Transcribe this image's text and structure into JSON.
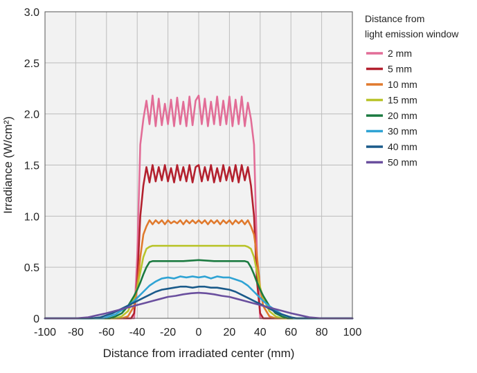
{
  "chart_data": {
    "type": "line",
    "title": "",
    "xlabel": "Distance from irradiated center (mm)",
    "ylabel": "Irradiance (W/cm²)",
    "xlim": [
      -100,
      100
    ],
    "ylim": [
      0,
      3.0
    ],
    "xticks": [
      -100,
      -80,
      -60,
      -40,
      -20,
      0,
      20,
      40,
      60,
      80,
      100
    ],
    "xtick_labels": [
      "-100",
      "-80",
      "-60",
      "-40",
      "-20",
      "0",
      "20",
      "40",
      "60",
      "80",
      "100"
    ],
    "yticks": [
      0,
      0.5,
      1.0,
      1.5,
      2.0,
      2.5,
      3.0
    ],
    "ytick_labels": [
      "0",
      "0.5",
      "1.0",
      "1.5",
      "2.0",
      "2.5",
      "3.0"
    ],
    "grid": true,
    "legend": {
      "title_lines": [
        "Distance from",
        "light emission window"
      ],
      "placement": "right"
    },
    "series": [
      {
        "name": "2 mm",
        "color": "#e26d97",
        "x": [
          -100,
          -42,
          -40,
          -38,
          -36,
          -34,
          -32,
          -30,
          -28,
          -26,
          -24,
          -22,
          -20,
          -18,
          -16,
          -14,
          -12,
          -10,
          -8,
          -6,
          -4,
          -2,
          0,
          2,
          4,
          6,
          8,
          10,
          12,
          14,
          16,
          18,
          20,
          22,
          24,
          26,
          28,
          30,
          32,
          34,
          36,
          38,
          40,
          42,
          100
        ],
        "y": [
          0,
          0,
          0.6,
          1.7,
          1.95,
          2.13,
          1.9,
          2.18,
          1.88,
          2.15,
          1.89,
          2.1,
          1.9,
          2.14,
          1.88,
          2.16,
          1.9,
          2.12,
          1.88,
          2.17,
          1.89,
          2.13,
          2.18,
          1.9,
          2.15,
          1.88,
          2.12,
          1.9,
          2.17,
          1.89,
          2.13,
          1.9,
          2.17,
          1.88,
          2.14,
          1.9,
          2.17,
          1.88,
          2.11,
          1.95,
          1.7,
          0.6,
          0,
          0,
          0
        ]
      },
      {
        "name": "5 mm",
        "color": "#b3202e",
        "x": [
          -100,
          -44,
          -42,
          -40,
          -38,
          -36,
          -34,
          -32,
          -30,
          -28,
          -26,
          -24,
          -22,
          -20,
          -18,
          -16,
          -14,
          -12,
          -10,
          -8,
          -6,
          -4,
          -2,
          0,
          2,
          4,
          6,
          8,
          10,
          12,
          14,
          16,
          18,
          20,
          22,
          24,
          26,
          28,
          30,
          32,
          34,
          36,
          38,
          40,
          42,
          44,
          100
        ],
        "y": [
          0,
          0,
          0.05,
          0.35,
          1.0,
          1.3,
          1.48,
          1.33,
          1.5,
          1.34,
          1.48,
          1.35,
          1.5,
          1.34,
          1.47,
          1.33,
          1.5,
          1.35,
          1.48,
          1.34,
          1.5,
          1.33,
          1.48,
          1.5,
          1.34,
          1.48,
          1.35,
          1.5,
          1.33,
          1.47,
          1.34,
          1.5,
          1.35,
          1.48,
          1.34,
          1.5,
          1.33,
          1.5,
          1.35,
          1.48,
          1.3,
          1.0,
          0.35,
          0.05,
          0,
          0,
          0
        ]
      },
      {
        "name": "10 mm",
        "color": "#e07a2e",
        "x": [
          -100,
          -50,
          -46,
          -42,
          -40,
          -38,
          -36,
          -34,
          -32,
          -30,
          -28,
          -26,
          -24,
          -22,
          -20,
          -18,
          -16,
          -14,
          -12,
          -10,
          -8,
          -6,
          -4,
          -2,
          0,
          2,
          4,
          6,
          8,
          10,
          12,
          14,
          16,
          18,
          20,
          22,
          24,
          26,
          28,
          30,
          32,
          34,
          36,
          38,
          40,
          42,
          46,
          50,
          100
        ],
        "y": [
          0,
          0,
          0.02,
          0.12,
          0.3,
          0.6,
          0.82,
          0.9,
          0.96,
          0.92,
          0.96,
          0.93,
          0.96,
          0.92,
          0.96,
          0.93,
          0.95,
          0.93,
          0.96,
          0.92,
          0.96,
          0.93,
          0.96,
          0.93,
          0.96,
          0.93,
          0.96,
          0.92,
          0.96,
          0.93,
          0.96,
          0.92,
          0.96,
          0.93,
          0.96,
          0.92,
          0.96,
          0.93,
          0.96,
          0.92,
          0.96,
          0.9,
          0.82,
          0.6,
          0.3,
          0.12,
          0.02,
          0,
          0
        ]
      },
      {
        "name": "15 mm",
        "color": "#b9c42b",
        "x": [
          -100,
          -54,
          -50,
          -46,
          -42,
          -40,
          -38,
          -36,
          -34,
          -32,
          -30,
          -20,
          -10,
          0,
          10,
          20,
          28,
          30,
          32,
          34,
          36,
          38,
          40,
          42,
          46,
          50,
          54,
          100
        ],
        "y": [
          0,
          0,
          0.02,
          0.07,
          0.2,
          0.3,
          0.45,
          0.6,
          0.68,
          0.7,
          0.71,
          0.71,
          0.71,
          0.71,
          0.71,
          0.71,
          0.71,
          0.71,
          0.7,
          0.68,
          0.6,
          0.45,
          0.3,
          0.2,
          0.07,
          0.02,
          0,
          0
        ]
      },
      {
        "name": "20 mm",
        "color": "#1b7a40",
        "x": [
          -100,
          -58,
          -54,
          -50,
          -46,
          -42,
          -40,
          -38,
          -36,
          -34,
          -32,
          -30,
          -20,
          -10,
          0,
          10,
          20,
          28,
          30,
          32,
          34,
          36,
          38,
          40,
          42,
          46,
          50,
          54,
          58,
          100
        ],
        "y": [
          0,
          0,
          0.02,
          0.05,
          0.12,
          0.22,
          0.28,
          0.35,
          0.43,
          0.5,
          0.55,
          0.56,
          0.56,
          0.56,
          0.57,
          0.56,
          0.56,
          0.56,
          0.56,
          0.55,
          0.5,
          0.43,
          0.35,
          0.28,
          0.22,
          0.12,
          0.05,
          0.02,
          0,
          0
        ]
      },
      {
        "name": "30 mm",
        "color": "#2fa3d4",
        "x": [
          -100,
          -62,
          -58,
          -54,
          -50,
          -46,
          -42,
          -40,
          -36,
          -32,
          -28,
          -24,
          -20,
          -16,
          -12,
          -8,
          -4,
          0,
          4,
          8,
          12,
          16,
          20,
          24,
          28,
          32,
          36,
          40,
          42,
          46,
          50,
          54,
          58,
          62,
          100
        ],
        "y": [
          0,
          0,
          0.02,
          0.04,
          0.08,
          0.12,
          0.17,
          0.2,
          0.26,
          0.32,
          0.36,
          0.39,
          0.4,
          0.39,
          0.41,
          0.4,
          0.41,
          0.4,
          0.41,
          0.39,
          0.41,
          0.4,
          0.4,
          0.38,
          0.36,
          0.32,
          0.26,
          0.2,
          0.17,
          0.12,
          0.08,
          0.04,
          0.02,
          0,
          0
        ]
      },
      {
        "name": "40 mm",
        "color": "#1a5a8a",
        "x": [
          -100,
          -70,
          -64,
          -60,
          -56,
          -52,
          -48,
          -44,
          -40,
          -36,
          -32,
          -28,
          -24,
          -20,
          -16,
          -12,
          -8,
          -4,
          0,
          4,
          8,
          12,
          16,
          20,
          24,
          28,
          32,
          36,
          40,
          44,
          48,
          52,
          56,
          60,
          64,
          70,
          100
        ],
        "y": [
          0,
          0,
          0.01,
          0.03,
          0.05,
          0.08,
          0.11,
          0.14,
          0.17,
          0.2,
          0.23,
          0.26,
          0.28,
          0.29,
          0.3,
          0.31,
          0.31,
          0.3,
          0.31,
          0.31,
          0.3,
          0.3,
          0.29,
          0.28,
          0.26,
          0.23,
          0.2,
          0.17,
          0.14,
          0.11,
          0.08,
          0.05,
          0.03,
          0.01,
          0,
          0,
          0
        ]
      },
      {
        "name": "50 mm",
        "color": "#6a4f9e",
        "x": [
          -100,
          -80,
          -72,
          -66,
          -60,
          -55,
          -50,
          -45,
          -40,
          -35,
          -30,
          -25,
          -20,
          -15,
          -10,
          -5,
          0,
          5,
          10,
          15,
          20,
          25,
          30,
          35,
          40,
          45,
          50,
          55,
          60,
          66,
          72,
          80,
          100
        ],
        "y": [
          0,
          0,
          0.01,
          0.03,
          0.05,
          0.07,
          0.09,
          0.11,
          0.13,
          0.15,
          0.17,
          0.19,
          0.21,
          0.22,
          0.235,
          0.245,
          0.25,
          0.245,
          0.235,
          0.22,
          0.21,
          0.19,
          0.17,
          0.15,
          0.13,
          0.11,
          0.09,
          0.07,
          0.05,
          0.03,
          0.01,
          0,
          0
        ]
      }
    ]
  }
}
